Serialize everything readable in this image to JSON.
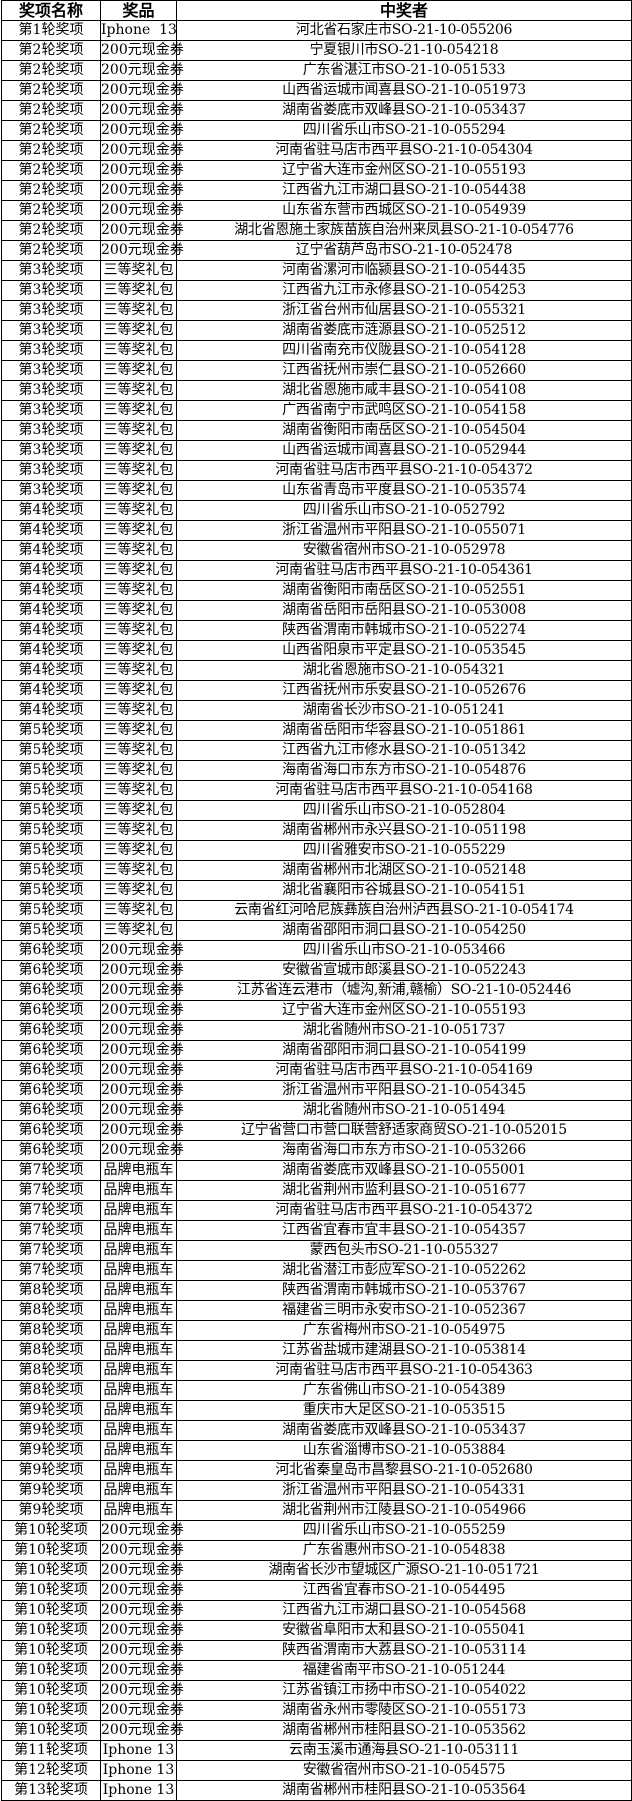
{
  "header": {
    "round": "奖项名称",
    "prize": "奖品",
    "winner": "中奖者"
  },
  "rows": [
    [
      "第1轮奖项",
      "Iphone  13",
      "河北省石家庄市SO-21-10-055206"
    ],
    [
      "第2轮奖项",
      "200元现金券",
      "宁夏银川市SO-21-10-054218"
    ],
    [
      "第2轮奖项",
      "200元现金券",
      "广东省湛江市SO-21-10-051533"
    ],
    [
      "第2轮奖项",
      "200元现金券",
      "山西省运城市闻喜县SO-21-10-051973"
    ],
    [
      "第2轮奖项",
      "200元现金券",
      "湖南省娄底市双峰县SO-21-10-053437"
    ],
    [
      "第2轮奖项",
      "200元现金券",
      "四川省乐山市SO-21-10-055294"
    ],
    [
      "第2轮奖项",
      "200元现金券",
      "河南省驻马店市西平县SO-21-10-054304"
    ],
    [
      "第2轮奖项",
      "200元现金券",
      "辽宁省大连市金州区SO-21-10-055193"
    ],
    [
      "第2轮奖项",
      "200元现金券",
      "江西省九江市湖口县SO-21-10-054438"
    ],
    [
      "第2轮奖项",
      "200元现金券",
      "山东省东营市西城区SO-21-10-054939"
    ],
    [
      "第2轮奖项",
      "200元现金券",
      "湖北省恩施土家族苗族自治州来凤县SO-21-10-054776"
    ],
    [
      "第2轮奖项",
      "200元现金券",
      "辽宁省葫芦岛市SO-21-10-052478"
    ],
    [
      "第3轮奖项",
      "三等奖礼包",
      "河南省漯河市临颍县SO-21-10-054435"
    ],
    [
      "第3轮奖项",
      "三等奖礼包",
      "江西省九江市永修县SO-21-10-054253"
    ],
    [
      "第3轮奖项",
      "三等奖礼包",
      "浙江省台州市仙居县SO-21-10-055321"
    ],
    [
      "第3轮奖项",
      "三等奖礼包",
      "湖南省娄底市涟源县SO-21-10-052512"
    ],
    [
      "第3轮奖项",
      "三等奖礼包",
      "四川省南充市仪陇县SO-21-10-054128"
    ],
    [
      "第3轮奖项",
      "三等奖礼包",
      "江西省抚州市崇仁县SO-21-10-052660"
    ],
    [
      "第3轮奖项",
      "三等奖礼包",
      "湖北省恩施市咸丰县SO-21-10-054108"
    ],
    [
      "第3轮奖项",
      "三等奖礼包",
      "广西省南宁市武鸣区SO-21-10-054158"
    ],
    [
      "第3轮奖项",
      "三等奖礼包",
      "湖南省衡阳市南岳区SO-21-10-054504"
    ],
    [
      "第3轮奖项",
      "三等奖礼包",
      "山西省运城市闻喜县SO-21-10-052944"
    ],
    [
      "第3轮奖项",
      "三等奖礼包",
      "河南省驻马店市西平县SO-21-10-054372"
    ],
    [
      "第3轮奖项",
      "三等奖礼包",
      "山东省青岛市平度县SO-21-10-053574"
    ],
    [
      "第4轮奖项",
      "三等奖礼包",
      "四川省乐山市SO-21-10-052792"
    ],
    [
      "第4轮奖项",
      "三等奖礼包",
      "浙江省温州市平阳县SO-21-10-055071"
    ],
    [
      "第4轮奖项",
      "三等奖礼包",
      "安徽省宿州市SO-21-10-052978"
    ],
    [
      "第4轮奖项",
      "三等奖礼包",
      "河南省驻马店市西平县SO-21-10-054361"
    ],
    [
      "第4轮奖项",
      "三等奖礼包",
      "湖南省衡阳市南岳区SO-21-10-052551"
    ],
    [
      "第4轮奖项",
      "三等奖礼包",
      "湖南省岳阳市岳阳县SO-21-10-053008"
    ],
    [
      "第4轮奖项",
      "三等奖礼包",
      "陕西省渭南市韩城市SO-21-10-052274"
    ],
    [
      "第4轮奖项",
      "三等奖礼包",
      "山西省阳泉市平定县SO-21-10-053545"
    ],
    [
      "第4轮奖项",
      "三等奖礼包",
      "湖北省恩施市SO-21-10-054321"
    ],
    [
      "第4轮奖项",
      "三等奖礼包",
      "江西省抚州市乐安县SO-21-10-052676"
    ],
    [
      "第4轮奖项",
      "三等奖礼包",
      "湖南省长沙市SO-21-10-051241"
    ],
    [
      "第5轮奖项",
      "三等奖礼包",
      "湖南省岳阳市华容县SO-21-10-051861"
    ],
    [
      "第5轮奖项",
      "三等奖礼包",
      "江西省九江市修水县SO-21-10-051342"
    ],
    [
      "第5轮奖项",
      "三等奖礼包",
      "海南省海口市东方市SO-21-10-054876"
    ],
    [
      "第5轮奖项",
      "三等奖礼包",
      "河南省驻马店市西平县SO-21-10-054168"
    ],
    [
      "第5轮奖项",
      "三等奖礼包",
      "四川省乐山市SO-21-10-052804"
    ],
    [
      "第5轮奖项",
      "三等奖礼包",
      "湖南省郴州市永兴县SO-21-10-051198"
    ],
    [
      "第5轮奖项",
      "三等奖礼包",
      "四川省雅安市SO-21-10-055229"
    ],
    [
      "第5轮奖项",
      "三等奖礼包",
      "湖南省郴州市北湖区SO-21-10-052148"
    ],
    [
      "第5轮奖项",
      "三等奖礼包",
      "湖北省襄阳市谷城县SO-21-10-054151"
    ],
    [
      "第5轮奖项",
      "三等奖礼包",
      "云南省红河哈尼族彝族自治州泸西县SO-21-10-054174"
    ],
    [
      "第5轮奖项",
      "三等奖礼包",
      "湖南省邵阳市洞口县SO-21-10-054250"
    ],
    [
      "第6轮奖项",
      "200元现金券",
      "四川省乐山市SO-21-10-053466"
    ],
    [
      "第6轮奖项",
      "200元现金券",
      "安徽省宣城市郎溪县SO-21-10-052243"
    ],
    [
      "第6轮奖项",
      "200元现金券",
      "江苏省连云港市（墟沟,新浦,赣榆）SO-21-10-052446"
    ],
    [
      "第6轮奖项",
      "200元现金券",
      "辽宁省大连市金州区SO-21-10-055193"
    ],
    [
      "第6轮奖项",
      "200元现金券",
      "湖北省随州市SO-21-10-051737"
    ],
    [
      "第6轮奖项",
      "200元现金券",
      "湖南省邵阳市洞口县SO-21-10-054199"
    ],
    [
      "第6轮奖项",
      "200元现金券",
      "河南省驻马店市西平县SO-21-10-054169"
    ],
    [
      "第6轮奖项",
      "200元现金券",
      "浙江省温州市平阳县SO-21-10-054345"
    ],
    [
      "第6轮奖项",
      "200元现金券",
      "湖北省随州市SO-21-10-051494"
    ],
    [
      "第6轮奖项",
      "200元现金券",
      "辽宁省营口市营口联营舒适家商贸SO-21-10-052015"
    ],
    [
      "第6轮奖项",
      "200元现金券",
      "海南省海口市东方市SO-21-10-053266"
    ],
    [
      "第7轮奖项",
      "品牌电瓶车",
      "湖南省娄底市双峰县SO-21-10-055001"
    ],
    [
      "第7轮奖项",
      "品牌电瓶车",
      "湖北省荆州市监利县SO-21-10-051677"
    ],
    [
      "第7轮奖项",
      "品牌电瓶车",
      "河南省驻马店市西平县SO-21-10-054372"
    ],
    [
      "第7轮奖项",
      "品牌电瓶车",
      "江西省宜春市宜丰县SO-21-10-054357"
    ],
    [
      "第7轮奖项",
      "品牌电瓶车",
      "蒙西包头市SO-21-10-055327"
    ],
    [
      "第7轮奖项",
      "品牌电瓶车",
      "湖北省潜江市彭应军SO-21-10-052262"
    ],
    [
      "第8轮奖项",
      "品牌电瓶车",
      "陕西省渭南市韩城市SO-21-10-053767"
    ],
    [
      "第8轮奖项",
      "品牌电瓶车",
      "福建省三明市永安市SO-21-10-052367"
    ],
    [
      "第8轮奖项",
      "品牌电瓶车",
      "广东省梅州市SO-21-10-054975"
    ],
    [
      "第8轮奖项",
      "品牌电瓶车",
      "江苏省盐城市建湖县SO-21-10-053814"
    ],
    [
      "第8轮奖项",
      "品牌电瓶车",
      "河南省驻马店市西平县SO-21-10-054363"
    ],
    [
      "第8轮奖项",
      "品牌电瓶车",
      "广东省佛山市SO-21-10-054389"
    ],
    [
      "第9轮奖项",
      "品牌电瓶车",
      "重庆市大足区SO-21-10-053515"
    ],
    [
      "第9轮奖项",
      "品牌电瓶车",
      "湖南省娄底市双峰县SO-21-10-053437"
    ],
    [
      "第9轮奖项",
      "品牌电瓶车",
      "山东省淄博市SO-21-10-053884"
    ],
    [
      "第9轮奖项",
      "品牌电瓶车",
      "河北省秦皇岛市昌黎县SO-21-10-052680"
    ],
    [
      "第9轮奖项",
      "品牌电瓶车",
      "浙江省温州市平阳县SO-21-10-054331"
    ],
    [
      "第9轮奖项",
      "品牌电瓶车",
      "湖北省荆州市江陵县SO-21-10-054966"
    ],
    [
      "第10轮奖项",
      "200元现金券",
      "四川省乐山市SO-21-10-055259"
    ],
    [
      "第10轮奖项",
      "200元现金券",
      "广东省惠州市SO-21-10-054838"
    ],
    [
      "第10轮奖项",
      "200元现金券",
      "湖南省长沙市望城区广源SO-21-10-051721"
    ],
    [
      "第10轮奖项",
      "200元现金券",
      "江西省宜春市SO-21-10-054495"
    ],
    [
      "第10轮奖项",
      "200元现金券",
      "江西省九江市湖口县SO-21-10-054568"
    ],
    [
      "第10轮奖项",
      "200元现金券",
      "安徽省阜阳市太和县SO-21-10-055041"
    ],
    [
      "第10轮奖项",
      "200元现金券",
      "陕西省渭南市大荔县SO-21-10-053114"
    ],
    [
      "第10轮奖项",
      "200元现金券",
      "福建省南平市SO-21-10-051244"
    ],
    [
      "第10轮奖项",
      "200元现金券",
      "江苏省镇江市扬中市SO-21-10-054022"
    ],
    [
      "第10轮奖项",
      "200元现金券",
      "湖南省永州市零陵区SO-21-10-055173"
    ],
    [
      "第10轮奖项",
      "200元现金券",
      "湖南省郴州市桂阳县SO-21-10-053562"
    ],
    [
      "第11轮奖项",
      "Iphone 13",
      "云南玉溪市通海县SO-21-10-053111"
    ],
    [
      "第12轮奖项",
      "Iphone 13",
      "安徽省宿州市SO-21-10-054575"
    ],
    [
      "第13轮奖项",
      "Iphone 13",
      "湖南省郴州市桂阳县SO-21-10-053564"
    ]
  ]
}
